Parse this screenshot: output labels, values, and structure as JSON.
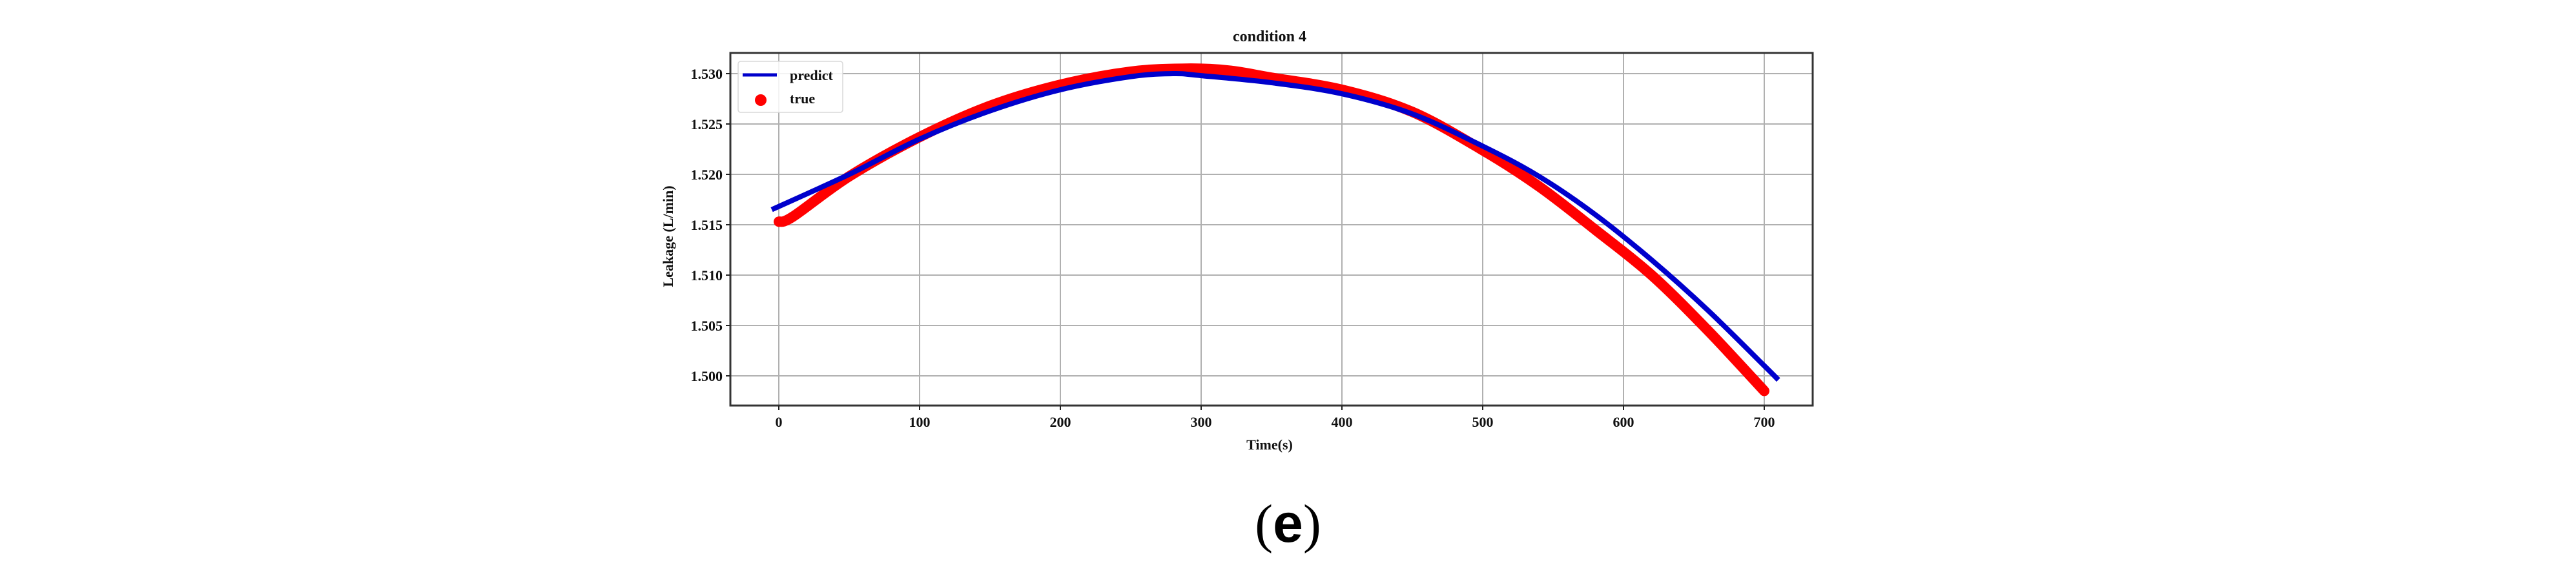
{
  "caption": {
    "open": "(",
    "letter": "e",
    "close": ")"
  },
  "chart_data": {
    "type": "line",
    "title": "condition 4",
    "xlabel": "Time(s)",
    "ylabel": "Leakage  (L/min)",
    "xlim": [
      -15,
      725
    ],
    "ylim": [
      1.4972,
      1.5322
    ],
    "xticks": [
      0,
      100,
      200,
      300,
      400,
      500,
      600,
      700
    ],
    "yticks": [
      1.5,
      1.505,
      1.51,
      1.515,
      1.52,
      1.525,
      1.53
    ],
    "xtick_labels": [
      "0",
      "100",
      "200",
      "300",
      "400",
      "500",
      "600",
      "700"
    ],
    "ytick_labels": [
      "1.500",
      "1.505",
      "1.510",
      "1.515",
      "1.520",
      "1.525",
      "1.530"
    ],
    "grid": true,
    "legend_position": "upper left",
    "colors": {
      "predict": "#0000cc",
      "true": "#ff0000",
      "grid": "#b0b0b0",
      "axes": "#333333"
    },
    "series": [
      {
        "name": "predict",
        "style": "line",
        "x": [
          -5,
          50,
          100,
          150,
          200,
          250,
          280,
          300,
          350,
          400,
          450,
          500,
          540,
          580,
          620,
          660,
          700,
          710
        ],
        "y": [
          1.5165,
          1.52,
          1.5235,
          1.5263,
          1.5284,
          1.5297,
          1.53,
          1.5298,
          1.5291,
          1.528,
          1.526,
          1.5228,
          1.5198,
          1.516,
          1.5115,
          1.5065,
          1.501,
          1.4996
        ]
      },
      {
        "name": "true",
        "style": "scatter",
        "x": [
          0,
          10,
          50,
          100,
          150,
          200,
          250,
          290,
          320,
          350,
          400,
          450,
          500,
          540,
          580,
          620,
          660,
          700
        ],
        "y": [
          1.5153,
          1.5158,
          1.5198,
          1.5237,
          1.5268,
          1.5289,
          1.5302,
          1.5305,
          1.5303,
          1.5296,
          1.5284,
          1.5262,
          1.5224,
          1.5188,
          1.5145,
          1.51,
          1.5045,
          1.4985
        ]
      }
    ]
  }
}
